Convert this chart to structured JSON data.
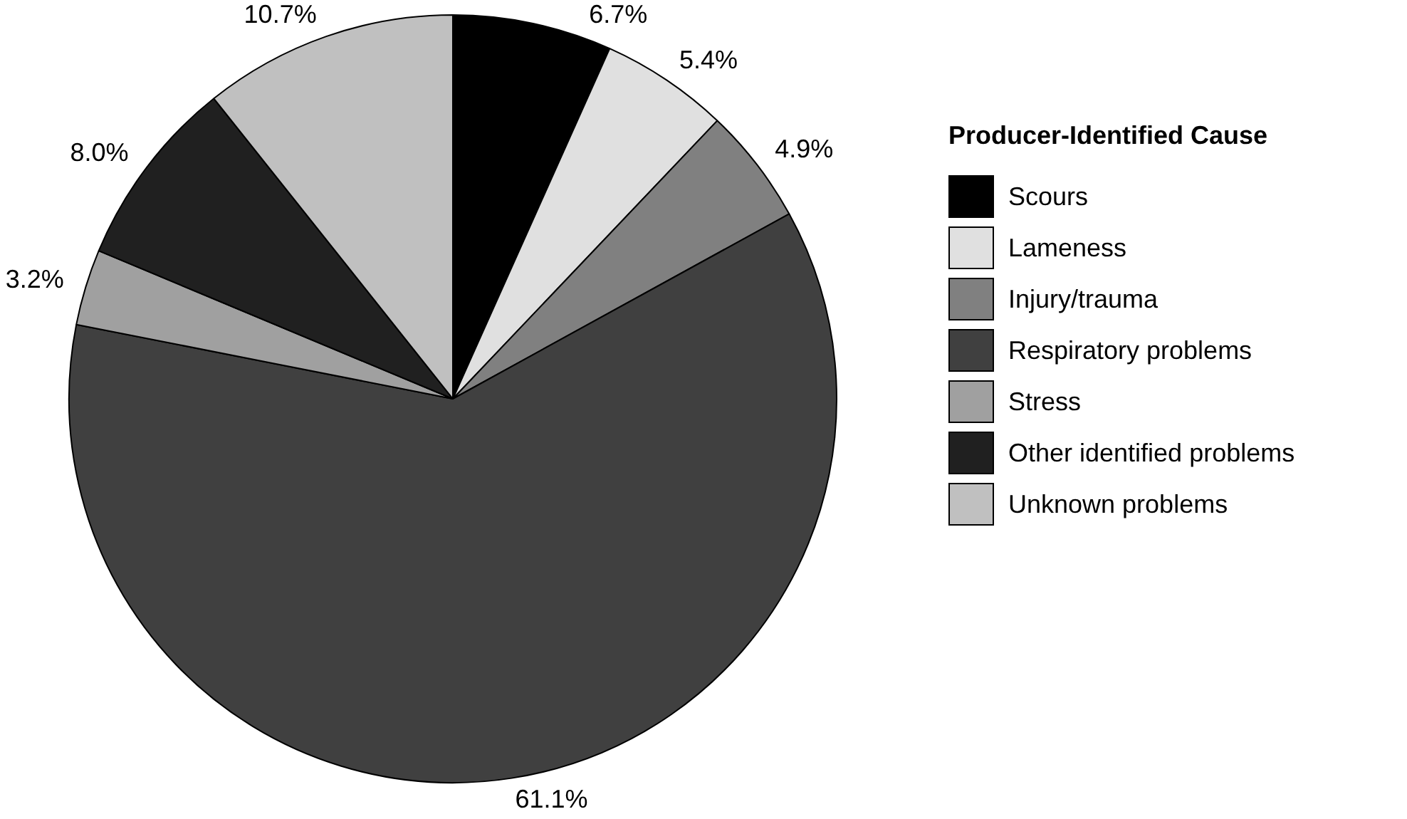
{
  "chart_data": {
    "type": "pie",
    "categories": [
      "Scours",
      "Lameness",
      "Injury/trauma",
      "Respiratory problems",
      "Stress",
      "Other identified problems",
      "Unknown problems"
    ],
    "values": [
      6.7,
      5.4,
      4.9,
      61.1,
      3.2,
      8.0,
      10.7
    ],
    "colors": [
      "#000000",
      "#e0e0e0",
      "#808080",
      "#404040",
      "#a0a0a0",
      "#202020",
      "#c0c0c0"
    ],
    "value_labels": [
      "6.7%",
      "5.4%",
      "4.9%",
      "61.1%",
      "3.2%",
      "8.0%",
      "10.7%"
    ],
    "legend_title": "Producer-Identified Cause",
    "legend": "right"
  }
}
